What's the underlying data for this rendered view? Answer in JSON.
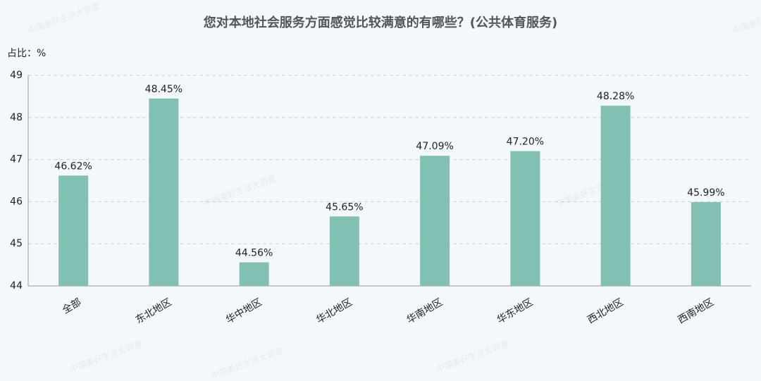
{
  "chart_data": {
    "type": "bar",
    "title": "您对本地社会服务方面感觉比较满意的有哪些？(公共体育服务)",
    "y_label": "占比：%",
    "watermark": "中国美好生活大调查",
    "categories": [
      "全部",
      "东北地区",
      "华中地区",
      "华北地区",
      "华南地区",
      "华东地区",
      "西北地区",
      "西南地区"
    ],
    "values": [
      46.62,
      48.45,
      44.56,
      45.65,
      47.09,
      47.2,
      48.28,
      45.99
    ],
    "value_labels": [
      "46.62%",
      "48.45%",
      "44.56%",
      "45.65%",
      "47.09%",
      "47.20%",
      "48.28%",
      "45.99%"
    ],
    "color": "#82c0b3",
    "ylim": [
      44,
      49
    ],
    "yticks": [
      44,
      45,
      46,
      47,
      48,
      49
    ],
    "grid": true
  }
}
